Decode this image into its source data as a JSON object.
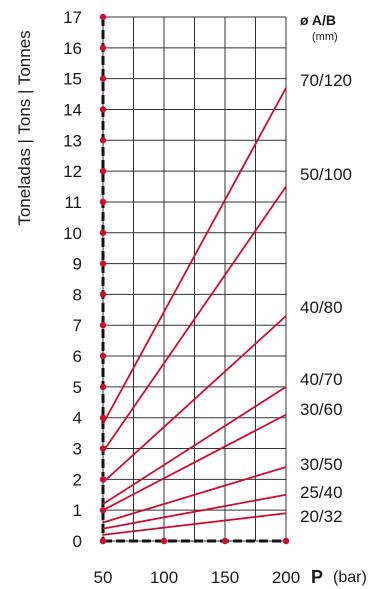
{
  "colors": {
    "line": "#c8102e",
    "axis": "#111111",
    "grid": "#333333",
    "background": "#ffffff"
  },
  "chart_data": {
    "type": "line",
    "ylabel": "Toneladas | Tons | Tonnes",
    "legend_title": "ø A/B",
    "legend_unit": "(mm)",
    "x_bold_label": "P",
    "x_unit_label": "(bar)",
    "xlim": [
      50,
      200
    ],
    "ylim": [
      0,
      17
    ],
    "x_ticks": [
      "50",
      "100",
      "150",
      "200"
    ],
    "y_ticks": [
      "0",
      "1",
      "2",
      "3",
      "4",
      "5",
      "6",
      "7",
      "8",
      "9",
      "10",
      "11",
      "12",
      "13",
      "14",
      "15",
      "16",
      "17"
    ],
    "grid": true,
    "series": [
      {
        "name": "70/120",
        "x": [
          50,
          200
        ],
        "y": [
          3.8,
          14.7
        ]
      },
      {
        "name": "50/100",
        "x": [
          50,
          200
        ],
        "y": [
          2.9,
          11.5
        ]
      },
      {
        "name": "40/80",
        "x": [
          50,
          200
        ],
        "y": [
          1.9,
          7.3
        ]
      },
      {
        "name": "40/70",
        "x": [
          50,
          200
        ],
        "y": [
          1.2,
          5.0
        ]
      },
      {
        "name": "30/60",
        "x": [
          50,
          200
        ],
        "y": [
          1.0,
          4.1
        ]
      },
      {
        "name": "30/50",
        "x": [
          50,
          200
        ],
        "y": [
          0.6,
          2.4
        ]
      },
      {
        "name": "25/40",
        "x": [
          50,
          200
        ],
        "y": [
          0.4,
          1.5
        ]
      },
      {
        "name": "20/32",
        "x": [
          50,
          200
        ],
        "y": [
          0.2,
          0.9
        ]
      }
    ]
  }
}
